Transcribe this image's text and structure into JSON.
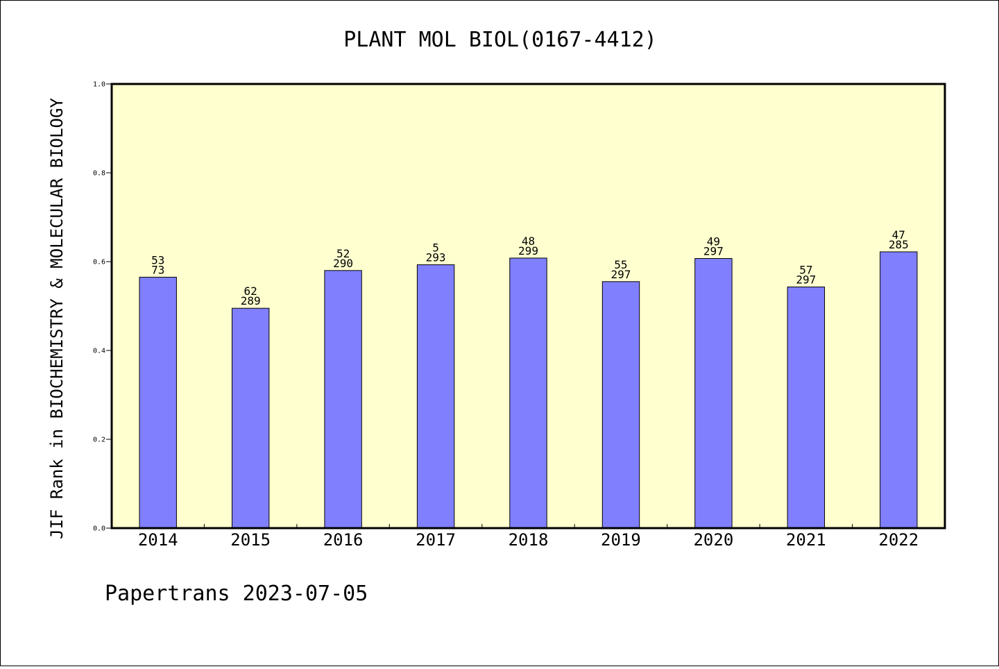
{
  "chart_data": {
    "type": "bar",
    "title": "PLANT MOL BIOL(0167-4412)",
    "ylabel": "JIF Rank in BIOCHEMISTRY & MOLECULAR BIOLOGY",
    "xlabel": "",
    "ylim": [
      0,
      1.0
    ],
    "yticks": [
      "0.0",
      "0.2",
      "0.4",
      "0.6",
      "0.8",
      "1.0"
    ],
    "categories": [
      "2014",
      "2015",
      "2016",
      "2017",
      "2018",
      "2019",
      "2020",
      "2021",
      "2022"
    ],
    "values": [
      0.565,
      0.495,
      0.58,
      0.593,
      0.608,
      0.555,
      0.607,
      0.543,
      0.622
    ],
    "rank_labels": [
      {
        "rank": "53",
        "total": "73"
      },
      {
        "rank": "62",
        "total": "289"
      },
      {
        "rank": "52",
        "total": "290"
      },
      {
        "rank": "5",
        "total": "293"
      },
      {
        "rank": "48",
        "total": "299"
      },
      {
        "rank": "55",
        "total": "297"
      },
      {
        "rank": "49",
        "total": "297"
      },
      {
        "rank": "57",
        "total": "297"
      },
      {
        "rank": "47",
        "total": "285"
      }
    ],
    "grid": false,
    "colors": {
      "plot_background": "#ffffd0",
      "bar_fill": "#8080ff",
      "bar_stroke": "#000000"
    }
  },
  "footer": "Papertrans 2023-07-05"
}
